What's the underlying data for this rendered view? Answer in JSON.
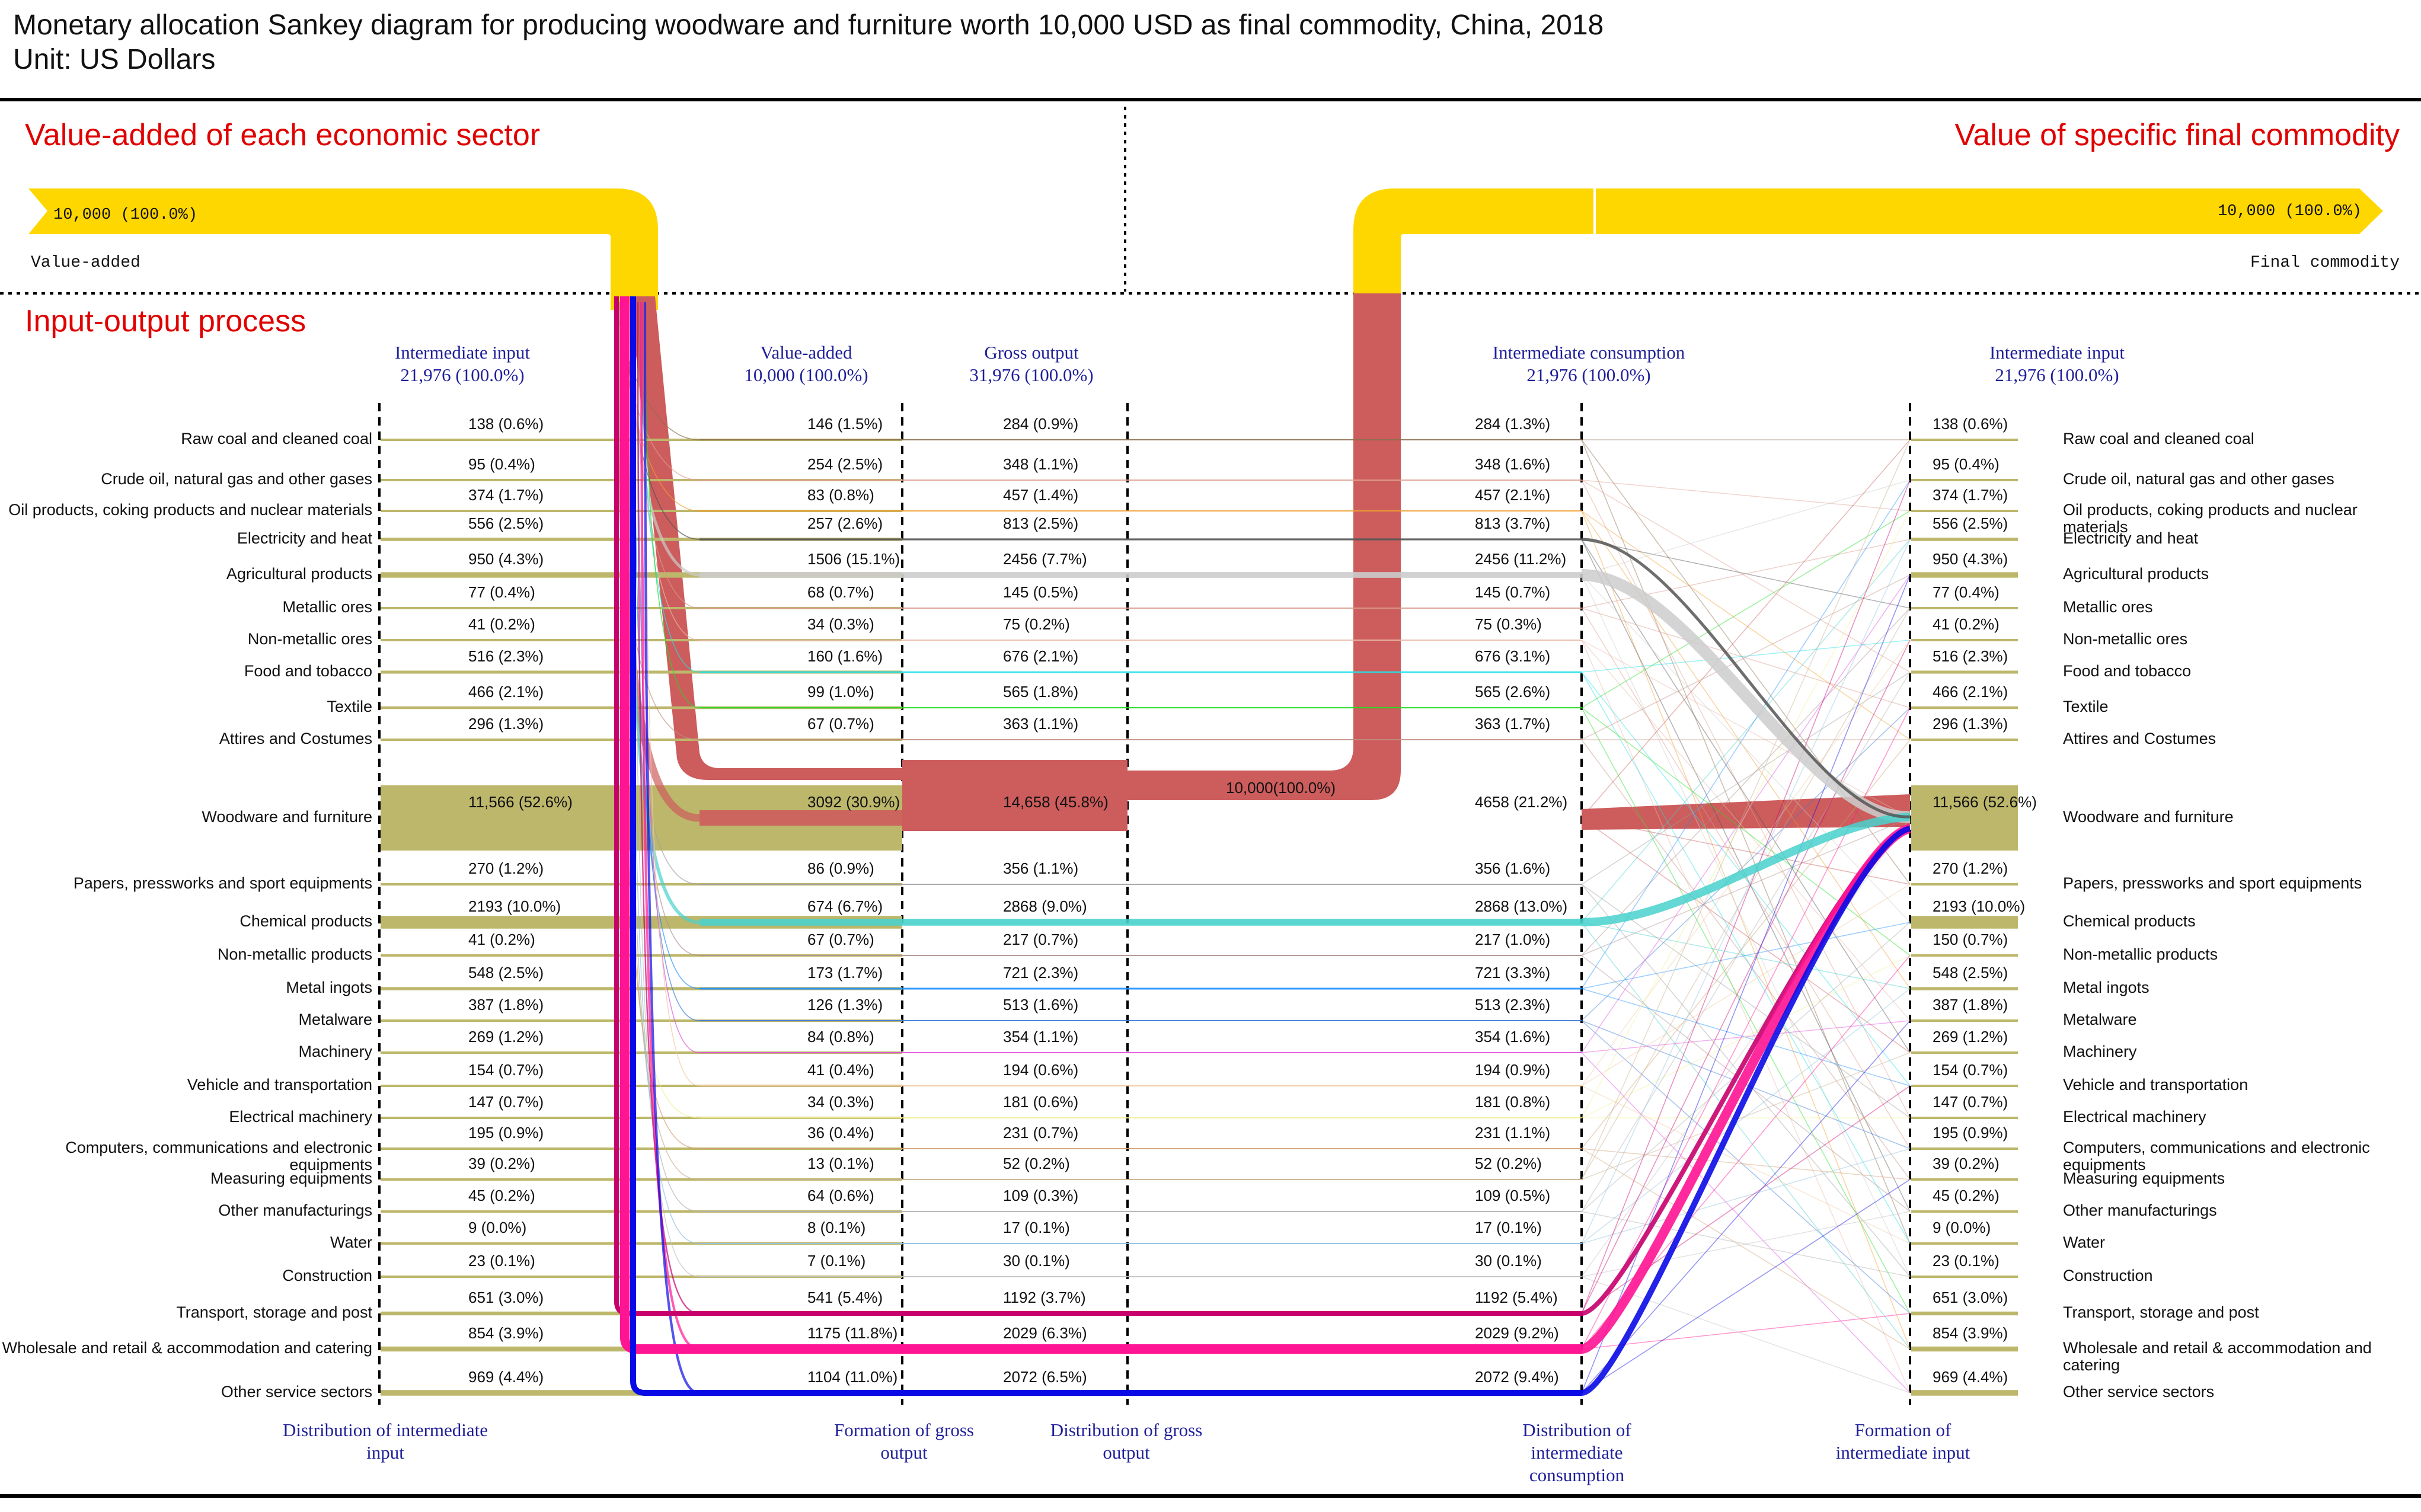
{
  "title_line1": "Monetary allocation Sankey diagram for producing woodware and furniture worth 10,000 USD as final commodity, China, 2018",
  "title_line2": "Unit: US Dollars",
  "left_section_title": "Value-added of each economic sector",
  "right_section_title": "Value of specific final commodity",
  "io_section_title": "Input-output process",
  "top_left_value": "10,000 (100.0%)",
  "top_left_label": "Value-added",
  "top_right_value": "10,000 (100.0%)",
  "top_right_label": "Final commodity",
  "center_flow_value": "10,000(100.0%)",
  "col_headers": {
    "intermediate_input_left": {
      "name": "Intermediate input",
      "total": "21,976 (100.0%)"
    },
    "value_added": {
      "name": "Value-added",
      "total": "10,000 (100.0%)"
    },
    "gross_output": {
      "name": "Gross output",
      "total": "31,976 (100.0%)"
    },
    "intermediate_consumption": {
      "name": "Intermediate consumption",
      "total": "21,976 (100.0%)"
    },
    "intermediate_input_right": {
      "name": "Intermediate input",
      "total": "21,976 (100.0%)"
    }
  },
  "bottom_labels": {
    "dist_intermediate_input": "Distribution of intermediate input",
    "form_gross_output": "Formation of gross output",
    "dist_gross_output": "Distribution of gross output",
    "dist_intermediate_consumption": "Distribution of intermediate consumption",
    "form_intermediate_input": "Formation of intermediate input"
  },
  "sectors": [
    {
      "name": "Raw coal and cleaned coal",
      "ii": "138 (0.6%)",
      "va": "146 (1.5%)",
      "go": "284 (0.9%)",
      "ic": "284 (1.3%)",
      "ii2": "138 (0.6%)",
      "color": "#8b6f4e"
    },
    {
      "name": "Crude oil, natural gas and other gases",
      "ii": "95 (0.4%)",
      "va": "254 (2.5%)",
      "go": "348 (1.1%)",
      "ic": "348 (1.6%)",
      "ii2": "95 (0.4%)",
      "color": "#e0a090"
    },
    {
      "name": "Oil products, coking products and nuclear materials",
      "ii": "374 (1.7%)",
      "va": "83 (0.8%)",
      "go": "457 (1.4%)",
      "ic": "457 (2.1%)",
      "ii2": "374 (1.7%)",
      "color": "#f0a030"
    },
    {
      "name": "Electricity and heat",
      "ii": "556 (2.5%)",
      "va": "257 (2.6%)",
      "go": "813 (2.5%)",
      "ic": "813 (3.7%)",
      "ii2": "556 (2.5%)",
      "color": "#555555"
    },
    {
      "name": "Agricultural products",
      "ii": "950 (4.3%)",
      "va": "1506 (15.1%)",
      "go": "2456 (7.7%)",
      "ic": "2456 (11.2%)",
      "ii2": "950 (4.3%)",
      "color": "#cccccc"
    },
    {
      "name": "Metallic ores",
      "ii": "77 (0.4%)",
      "va": "68 (0.7%)",
      "go": "145 (0.5%)",
      "ic": "145 (0.7%)",
      "ii2": "77 (0.4%)",
      "color": "#d99a8c"
    },
    {
      "name": "Non-metallic ores",
      "ii": "41 (0.2%)",
      "va": "34 (0.3%)",
      "go": "75 (0.2%)",
      "ic": "75 (0.3%)",
      "ii2": "41 (0.2%)",
      "color": "#e9b8a8"
    },
    {
      "name": "Food and tobacco",
      "ii": "516 (2.3%)",
      "va": "160 (1.6%)",
      "go": "676 (2.1%)",
      "ic": "676 (3.1%)",
      "ii2": "516 (2.3%)",
      "color": "#22e0e8"
    },
    {
      "name": "Textile",
      "ii": "466 (2.1%)",
      "va": "99 (1.0%)",
      "go": "565 (1.8%)",
      "ic": "565 (2.6%)",
      "ii2": "466 (2.1%)",
      "color": "#22dd22"
    },
    {
      "name": "Attires and Costumes",
      "ii": "296 (1.3%)",
      "va": "67 (0.7%)",
      "go": "363 (1.1%)",
      "ic": "363 (1.7%)",
      "ii2": "296 (1.3%)",
      "color": "#c09080"
    },
    {
      "name": "Woodware and furniture",
      "ii": "11,566 (52.6%)",
      "va": "3092 (30.9%)",
      "go": "14,658 (45.8%)",
      "ic": "4658 (21.2%)",
      "ii2": "11,566 (52.6%)",
      "color": "#cd5c5c"
    },
    {
      "name": "Papers, pressworks and sport equipments",
      "ii": "270 (1.2%)",
      "va": "86 (0.9%)",
      "go": "356 (1.1%)",
      "ic": "356 (1.6%)",
      "ii2": "270 (1.2%)",
      "color": "#a0a0a0"
    },
    {
      "name": "Chemical products",
      "ii": "2193 (10.0%)",
      "va": "674 (6.7%)",
      "go": "2868 (9.0%)",
      "ic": "2868 (13.0%)",
      "ii2": "2193 (10.0%)",
      "color": "#48d1cc"
    },
    {
      "name": "Non-metallic products",
      "ii": "41 (0.2%)",
      "va": "67 (0.7%)",
      "go": "217 (0.7%)",
      "ic": "217 (1.0%)",
      "ii2": "150 (0.7%)",
      "color": "#b09090"
    },
    {
      "name": "Metal ingots",
      "ii": "548 (2.5%)",
      "va": "173 (1.7%)",
      "go": "721 (2.3%)",
      "ic": "721 (3.3%)",
      "ii2": "548 (2.5%)",
      "color": "#1e90ff"
    },
    {
      "name": "Metalware",
      "ii": "387 (1.8%)",
      "va": "126 (1.3%)",
      "go": "513 (1.6%)",
      "ic": "513 (2.3%)",
      "ii2": "387 (1.8%)",
      "color": "#3a7ad8"
    },
    {
      "name": "Machinery",
      "ii": "269 (1.2%)",
      "va": "84 (0.8%)",
      "go": "354 (1.1%)",
      "ic": "354 (1.6%)",
      "ii2": "269 (1.2%)",
      "color": "#e050e0"
    },
    {
      "name": "Vehicle and transportation",
      "ii": "154 (0.7%)",
      "va": "41 (0.4%)",
      "go": "194 (0.6%)",
      "ic": "194 (0.9%)",
      "ii2": "154 (0.7%)",
      "color": "#f0c8a0"
    },
    {
      "name": "Electrical machinery",
      "ii": "147 (0.7%)",
      "va": "34 (0.3%)",
      "go": "181 (0.6%)",
      "ic": "181 (0.8%)",
      "ii2": "147 (0.7%)",
      "color": "#f0f090"
    },
    {
      "name": "Computers, communications and electronic equipments",
      "ii": "195 (0.9%)",
      "va": "36 (0.4%)",
      "go": "231 (0.7%)",
      "ic": "231 (1.1%)",
      "ii2": "195 (0.9%)",
      "color": "#d0a070"
    },
    {
      "name": "Measuring equipments",
      "ii": "39 (0.2%)",
      "va": "13 (0.1%)",
      "go": "52 (0.2%)",
      "ic": "52 (0.2%)",
      "ii2": "39 (0.2%)",
      "color": "#c8b090"
    },
    {
      "name": "Other manufacturings",
      "ii": "45 (0.2%)",
      "va": "64 (0.6%)",
      "go": "109 (0.3%)",
      "ic": "109 (0.5%)",
      "ii2": "45 (0.2%)",
      "color": "#b0b0b0"
    },
    {
      "name": "Water",
      "ii": "9 (0.0%)",
      "va": "8 (0.1%)",
      "go": "17 (0.1%)",
      "ic": "17 (0.1%)",
      "ii2": "9 (0.0%)",
      "color": "#90c0e0"
    },
    {
      "name": "Construction",
      "ii": "23 (0.1%)",
      "va": "7 (0.1%)",
      "go": "30 (0.1%)",
      "ic": "30 (0.1%)",
      "ii2": "23 (0.1%)",
      "color": "#c0c0c0"
    },
    {
      "name": "Transport, storage and post",
      "ii": "651 (3.0%)",
      "va": "541 (5.4%)",
      "go": "1192 (3.7%)",
      "ic": "1192 (5.4%)",
      "ii2": "651 (3.0%)",
      "color": "#c8006e"
    },
    {
      "name": "Wholesale and retail & accommodation and catering",
      "ii": "854 (3.9%)",
      "va": "1175 (11.8%)",
      "go": "2029 (6.3%)",
      "ic": "2029 (9.2%)",
      "ii2": "854 (3.9%)",
      "color": "#ff1493"
    },
    {
      "name": "Other service sectors",
      "ii": "969 (4.4%)",
      "va": "1104 (11.0%)",
      "go": "2072 (6.5%)",
      "ic": "2072 (9.4%)",
      "ii2": "969 (4.4%)",
      "color": "#0a0ae6"
    }
  ],
  "colors": {
    "value_added_band": "#ffd700",
    "woodware_band": "#cd5c5c",
    "node_bar": "#bdb76b",
    "section_title": "#e00000",
    "header_blue": "#1f1f9a"
  }
}
